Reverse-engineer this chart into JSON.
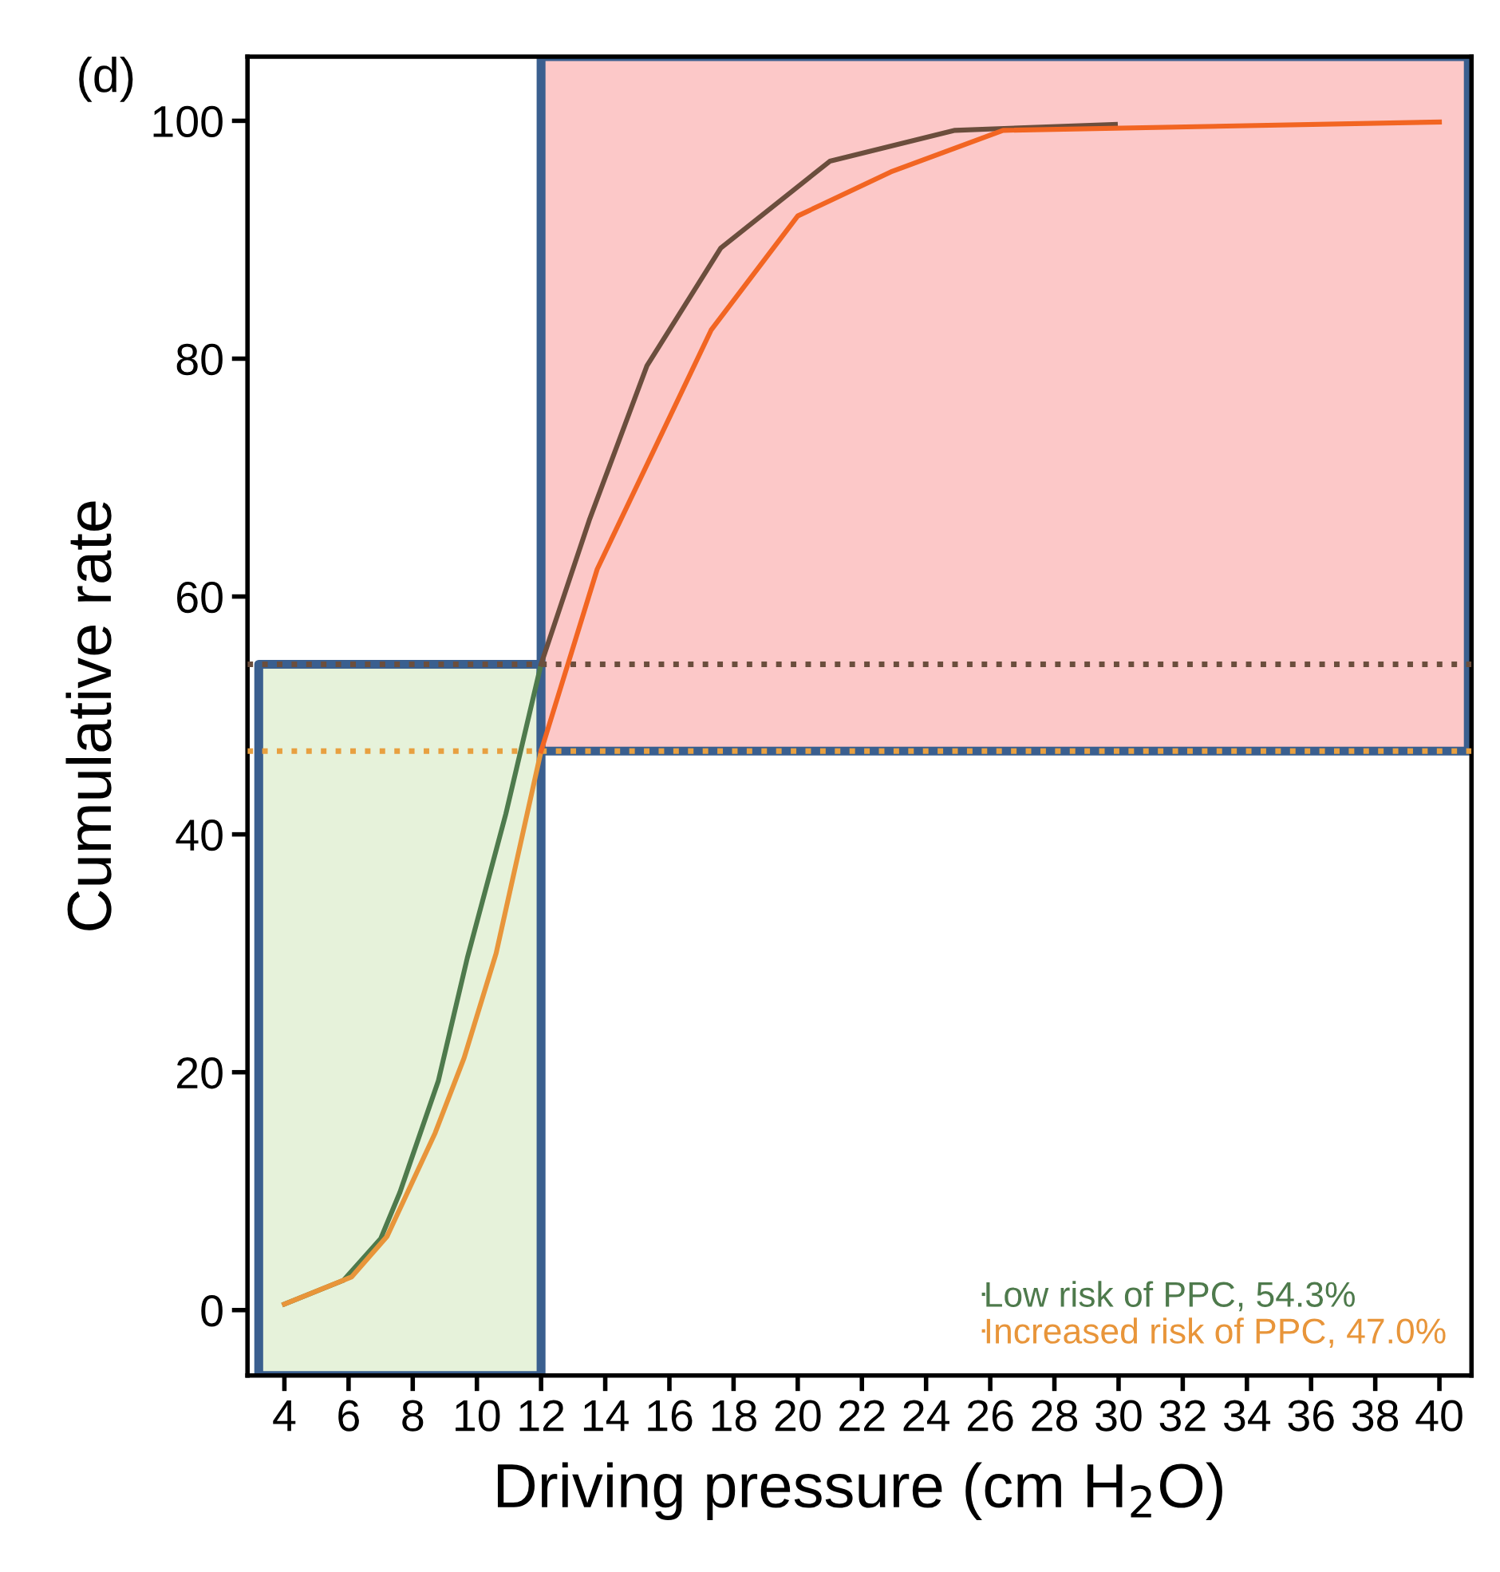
{
  "chart_data": {
    "type": "line",
    "title": "(d)",
    "xlabel": "Driving pressure (cm H$_{2}$O)",
    "ylabel": "Cumulative rate",
    "xlim": [
      2.85,
      41.0
    ],
    "ylim": [
      -5.5,
      105.4
    ],
    "xticks": [
      4,
      6,
      8,
      10,
      12,
      14,
      16,
      18,
      20,
      22,
      24,
      26,
      28,
      30,
      32,
      34,
      36,
      38,
      40
    ],
    "yticks": [
      0,
      20,
      40,
      60,
      80,
      100
    ],
    "grid": false,
    "legend": "bottom right",
    "marker": "none",
    "line_style": "solid",
    "series": [
      {
        "name": "Low risk of PPC, 54.3%",
        "color": "#4e7a4c",
        "x": [
          4,
          5.84,
          7.0,
          7.6,
          8.8,
          9.7,
          10.9,
          12
        ],
        "values": [
          0.5,
          2.5,
          6.0,
          9.9,
          19.3,
          29.6,
          41.7,
          54.3
        ]
      },
      {
        "name": "Increased risk of PPC, 47.0%",
        "color": "#e8953a",
        "x": [
          4,
          6.1,
          7.2,
          8.7,
          9.6,
          10.6,
          12
        ],
        "values": [
          0.5,
          2.8,
          6.2,
          14.9,
          21.2,
          30.0,
          47.0
        ]
      },
      {
        "color": "#6b4e3d",
        "x": [
          12,
          13.5,
          15.3,
          17.6,
          21.0,
          24.9,
          29.9
        ],
        "values": [
          54.3,
          66.4,
          79.4,
          89.3,
          96.6,
          99.2,
          99.7
        ]
      },
      {
        "color": "#f26522",
        "x": [
          12,
          13.75,
          17.3,
          20.0,
          22.9,
          26.4,
          40
        ],
        "values": [
          47.0,
          62.3,
          82.4,
          92.0,
          95.7,
          99.2,
          99.9
        ]
      }
    ],
    "bands": [
      {
        "axis": "x",
        "from": 3.2,
        "to": 12,
        "color": "#e6f2da"
      },
      {
        "axis": "x",
        "from": 12,
        "to": 40.9,
        "color": "#fcc8c8"
      }
    ],
    "ref_lines": [
      {
        "axis": "y",
        "value": 54.3,
        "color": "#6b4e3d",
        "line_style": "dotted"
      },
      {
        "axis": "y",
        "value": 47.0,
        "color": "#e8a040",
        "line_style": "dotted"
      }
    ]
  }
}
